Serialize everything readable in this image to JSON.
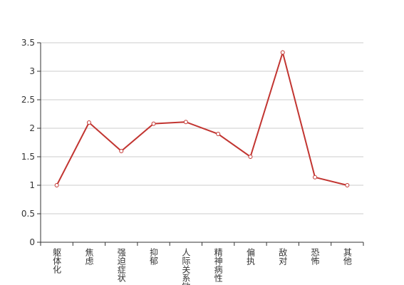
{
  "chart_data": {
    "type": "line",
    "categories": [
      "躯体化",
      "焦虑",
      "强迫症状",
      "抑郁",
      "人际关系敏感",
      "精神病性",
      "偏执",
      "敌对",
      "恐怖",
      "其他"
    ],
    "values": [
      1,
      2.1,
      1.6,
      2.08,
      2.11,
      1.9,
      1.5,
      3.33,
      1.14,
      1
    ],
    "color": "#c23531",
    "ylim": [
      0,
      3.5
    ],
    "yticks": [
      0,
      0.5,
      1,
      1.5,
      2,
      2.5,
      3,
      3.5
    ],
    "grid": true
  }
}
